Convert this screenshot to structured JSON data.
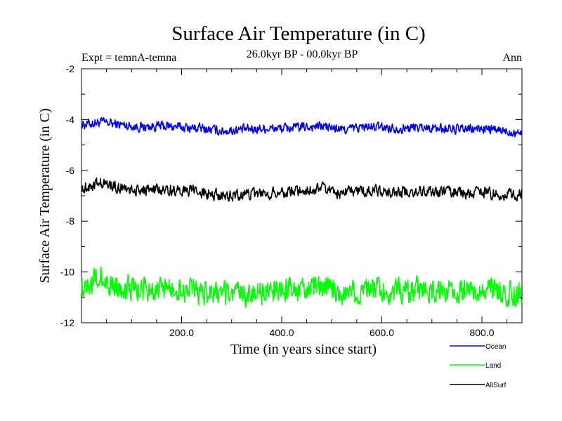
{
  "chart_data": {
    "type": "line",
    "title": "Surface Air Temperature (in C)",
    "subtitle": "26.0kyr BP - 00.0kyr BP",
    "expt_label": "Expt = temnA-temna",
    "season_label": "Ann",
    "xlabel": "Time (in years since start)",
    "ylabel": "Surface Air Temperature (in C)",
    "xlim": [
      0,
      880
    ],
    "ylim": [
      -12,
      -2
    ],
    "xticks": [
      200,
      400,
      600,
      800
    ],
    "xtick_labels": [
      "200.0",
      "400.0",
      "600.0",
      "800.0"
    ],
    "yticks": [
      -12,
      -10,
      -8,
      -6,
      -4,
      -2
    ],
    "ytick_labels": [
      "-12",
      "-10",
      "-8",
      "-6",
      "-4",
      "-2"
    ],
    "grid": false,
    "legend_position": "bottom-right",
    "x": [
      0,
      40,
      80,
      120,
      160,
      200,
      240,
      280,
      320,
      360,
      400,
      440,
      480,
      520,
      560,
      600,
      640,
      680,
      720,
      760,
      800,
      840,
      880
    ],
    "series": [
      {
        "name": "Ocean",
        "color": "#0000ff",
        "values": [
          -4.2,
          -4.1,
          -4.2,
          -4.3,
          -4.25,
          -4.3,
          -4.35,
          -4.45,
          -4.4,
          -4.35,
          -4.35,
          -4.3,
          -4.25,
          -4.4,
          -4.3,
          -4.3,
          -4.35,
          -4.3,
          -4.35,
          -4.4,
          -4.35,
          -4.45,
          -4.5
        ]
      },
      {
        "name": "Land",
        "color": "#00ff00",
        "values": [
          -10.5,
          -10.3,
          -10.6,
          -10.7,
          -10.65,
          -10.7,
          -10.8,
          -10.9,
          -10.85,
          -10.8,
          -10.75,
          -10.7,
          -10.6,
          -10.8,
          -10.75,
          -10.7,
          -10.75,
          -10.7,
          -10.8,
          -10.75,
          -10.7,
          -10.8,
          -10.85
        ]
      },
      {
        "name": "AllSurf",
        "color": "#000000",
        "values": [
          -6.7,
          -6.5,
          -6.7,
          -6.8,
          -6.75,
          -6.8,
          -6.85,
          -7.0,
          -6.95,
          -6.9,
          -6.85,
          -6.8,
          -6.7,
          -6.9,
          -6.8,
          -6.8,
          -6.85,
          -6.8,
          -6.85,
          -6.9,
          -6.85,
          -6.95,
          -6.95
        ]
      }
    ]
  }
}
